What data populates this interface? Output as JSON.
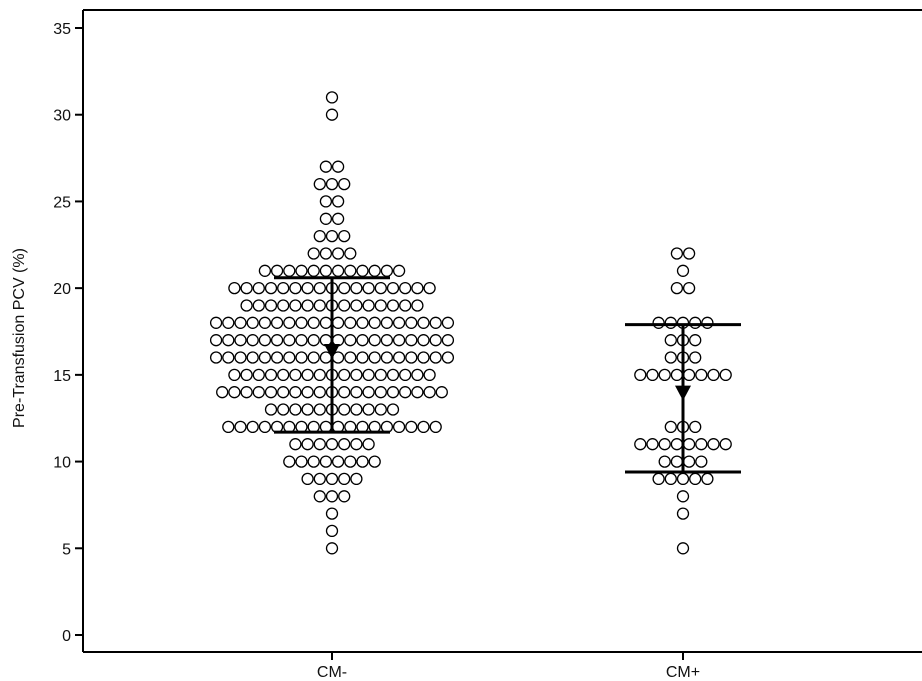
{
  "chart_data": {
    "type": "scatter",
    "subtype": "dot-plot",
    "ylabel": "Pre-Transfusion PCV (%)",
    "ylim": [
      0,
      35
    ],
    "yticks": [
      0,
      5,
      10,
      15,
      20,
      25,
      30,
      35
    ],
    "grid": false,
    "categories": [
      "CM-",
      "CM+"
    ],
    "groups": [
      {
        "category": "CM-",
        "mean": 16.2,
        "sd_lower": 11.7,
        "sd_upper": 20.6,
        "value_counts": [
          [
            5,
            1
          ],
          [
            6,
            1
          ],
          [
            7,
            1
          ],
          [
            8,
            3
          ],
          [
            9,
            5
          ],
          [
            10,
            8
          ],
          [
            11,
            7
          ],
          [
            12,
            18
          ],
          [
            13,
            11
          ],
          [
            14,
            19
          ],
          [
            15,
            17
          ],
          [
            16,
            20
          ],
          [
            17,
            20
          ],
          [
            18,
            20
          ],
          [
            19,
            15
          ],
          [
            20,
            17
          ],
          [
            21,
            12
          ],
          [
            22,
            4
          ],
          [
            23,
            3
          ],
          [
            24,
            2
          ],
          [
            25,
            2
          ],
          [
            26,
            3
          ],
          [
            27,
            2
          ],
          [
            30,
            1
          ],
          [
            31,
            1
          ]
        ]
      },
      {
        "category": "CM+",
        "mean": 13.8,
        "sd_lower": 9.4,
        "sd_upper": 17.9,
        "value_counts": [
          [
            5,
            1
          ],
          [
            7,
            1
          ],
          [
            8,
            1
          ],
          [
            9,
            5
          ],
          [
            10,
            4
          ],
          [
            11,
            8
          ],
          [
            12,
            3
          ],
          [
            15,
            8
          ],
          [
            16,
            3
          ],
          [
            17,
            3
          ],
          [
            18,
            5
          ],
          [
            20,
            2
          ],
          [
            21,
            1
          ],
          [
            22,
            2
          ]
        ]
      }
    ],
    "colors": {
      "marker_edge": "#000000",
      "marker_fill": "#ffffff",
      "bars": "#000000"
    }
  }
}
